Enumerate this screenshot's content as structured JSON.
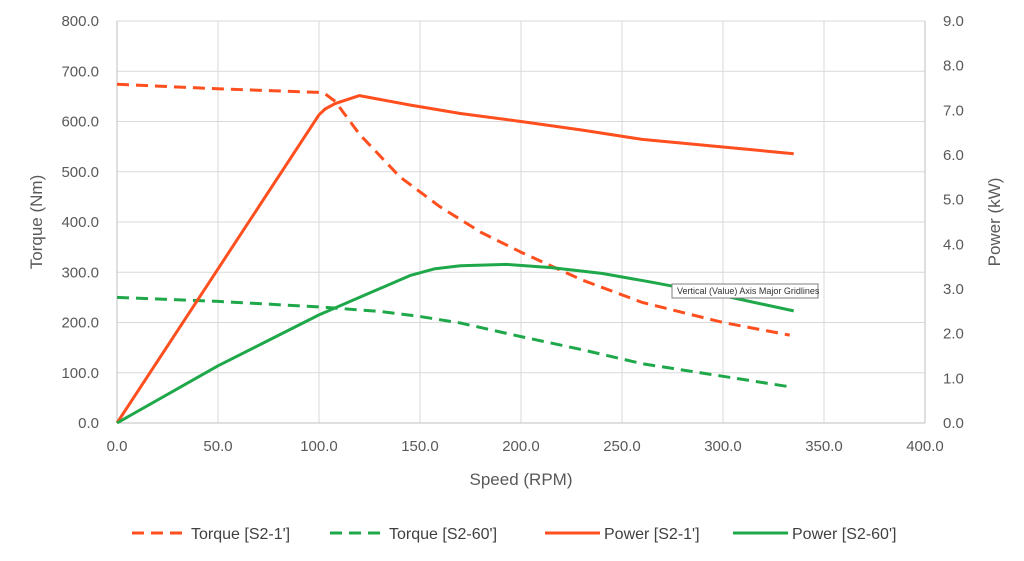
{
  "chart_data": {
    "type": "line",
    "title": "",
    "xlabel": "Speed (RPM)",
    "ylabel": "Torque (Nm)",
    "y2label": "Power (kW)",
    "xlim": [
      0,
      400
    ],
    "ylim": [
      0,
      800
    ],
    "y2lim": [
      0,
      9
    ],
    "x_ticks": [
      "0.0",
      "50.0",
      "100.0",
      "150.0",
      "200.0",
      "250.0",
      "300.0",
      "350.0",
      "400.0"
    ],
    "y_ticks": [
      "0.0",
      "100.0",
      "200.0",
      "300.0",
      "400.0",
      "500.0",
      "600.0",
      "700.0",
      "800.0"
    ],
    "y2_ticks": [
      "0.0",
      "1.0",
      "2.0",
      "3.0",
      "4.0",
      "5.0",
      "6.0",
      "7.0",
      "8.0",
      "9.0"
    ],
    "grid": true,
    "legend_position": "bottom",
    "tooltip": "Vertical (Value) Axis Major Gridlines",
    "series": [
      {
        "name": "Torque [S2-1']",
        "axis": "left",
        "color": "#FF4F1F",
        "dash": true,
        "x": [
          0,
          50,
          100,
          103,
          108,
          120,
          140,
          160,
          180,
          200,
          230,
          260,
          300,
          333
        ],
        "y": [
          674,
          665,
          658,
          655,
          640,
          575,
          490,
          430,
          380,
          340,
          285,
          240,
          200,
          175
        ]
      },
      {
        "name": "Torque [S2-60']",
        "axis": "left",
        "color": "#1FA84A",
        "dash": true,
        "x": [
          0,
          50,
          100,
          130,
          150,
          170,
          200,
          230,
          260,
          300,
          333
        ],
        "y": [
          250,
          242,
          231,
          222,
          212,
          199,
          172,
          146,
          118,
          93,
          72
        ]
      },
      {
        "name": "Power [S2-1']",
        "axis": "right",
        "color": "#FF4F1F",
        "dash": false,
        "x": [
          0,
          50,
          100,
          103,
          108,
          120,
          145,
          170,
          200,
          230,
          260,
          300,
          335
        ],
        "y": [
          0,
          3.45,
          6.9,
          7.03,
          7.15,
          7.33,
          7.12,
          6.93,
          6.75,
          6.56,
          6.35,
          6.18,
          6.03
        ]
      },
      {
        "name": "Power [S2-60']",
        "axis": "right",
        "color": "#1FA84A",
        "dash": false,
        "x": [
          0,
          50,
          100,
          145,
          157,
          170,
          193,
          215,
          240,
          265,
          300,
          335
        ],
        "y": [
          0,
          1.28,
          2.42,
          3.3,
          3.45,
          3.52,
          3.55,
          3.48,
          3.35,
          3.15,
          2.85,
          2.51
        ]
      }
    ]
  }
}
